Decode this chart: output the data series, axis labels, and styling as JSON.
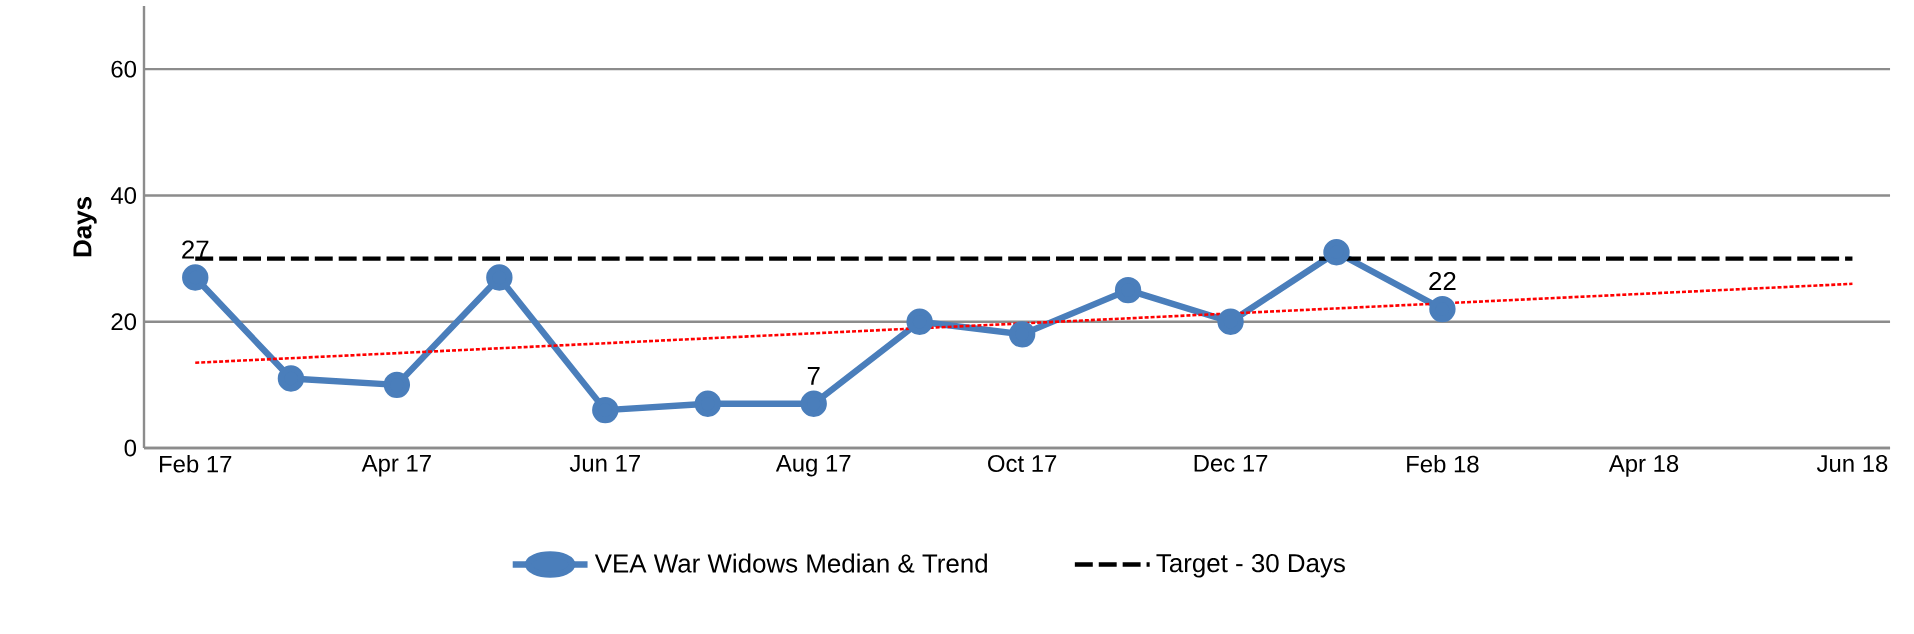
{
  "chart_data": {
    "type": "line",
    "ylabel": "Days",
    "x": [
      "2017-02",
      "2017-03",
      "2017-04",
      "2017-05",
      "2017-06",
      "2017-07",
      "2017-08",
      "2017-09",
      "2017-10",
      "2017-11",
      "2017-12",
      "2018-01",
      "2018-02"
    ],
    "xlim": [
      "2017-01-17",
      "2018-06-12"
    ],
    "xticks": [
      {
        "value": "2017-02",
        "label": "Feb 17"
      },
      {
        "value": "2017-04",
        "label": "Apr 17"
      },
      {
        "value": "2017-06",
        "label": "Jun 17"
      },
      {
        "value": "2017-08",
        "label": "Aug 17"
      },
      {
        "value": "2017-10",
        "label": "Oct 17"
      },
      {
        "value": "2017-12",
        "label": "Dec 17"
      },
      {
        "value": "2018-02",
        "label": "Feb 18"
      },
      {
        "value": "2018-04",
        "label": "Apr 18"
      },
      {
        "value": "2018-06",
        "label": "Jun 18"
      }
    ],
    "ylim": [
      0,
      70
    ],
    "yticks": [
      0,
      20,
      40,
      60
    ],
    "grid": "y",
    "legend": "bottom",
    "series": [
      {
        "name": "VEA War Widows Median & Trend",
        "color": "#4a7ebb",
        "marker": "circle",
        "line_style": "solid",
        "values": [
          27,
          11,
          10,
          27,
          6,
          7,
          7,
          20,
          18,
          25,
          20,
          31,
          22
        ],
        "value_labels": [
          "27",
          null,
          null,
          null,
          null,
          null,
          "7",
          null,
          null,
          null,
          null,
          null,
          "22"
        ]
      },
      {
        "type": "line",
        "color": "#ff0000",
        "line_style": "dotted",
        "marker": "none",
        "x": [
          "2017-02",
          "2018-06"
        ],
        "values": [
          13.5,
          26
        ]
      },
      {
        "type": "line",
        "name": "Target - 30 Days",
        "color": "#000000",
        "line_style": "dashed",
        "marker": "none",
        "x": [
          "2017-02",
          "2018-06"
        ],
        "values": [
          30,
          30
        ]
      }
    ]
  }
}
